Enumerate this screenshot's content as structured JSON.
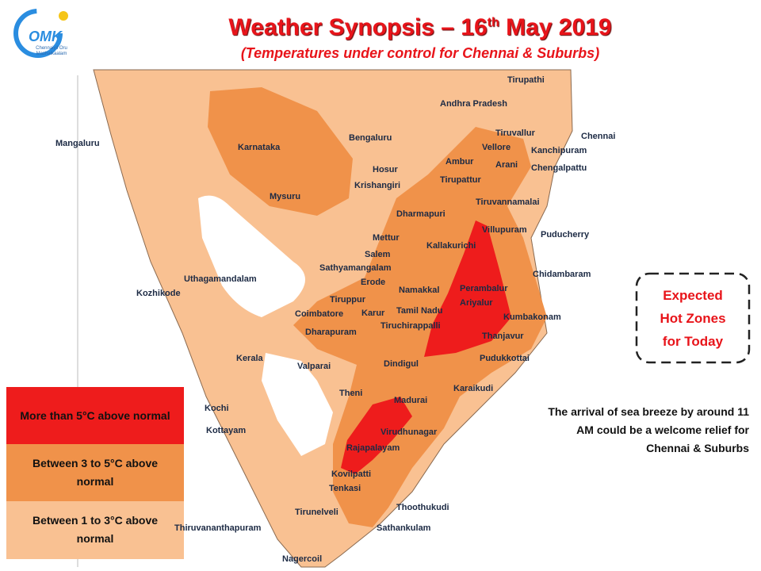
{
  "header": {
    "title_parts": [
      "Weather Synopsis – 16",
      "th",
      " May 2019"
    ],
    "subtitle": "(Temperatures under control for Chennai & Suburbs)"
  },
  "logo": {
    "name": "OMK",
    "tagline": "Chennaiyil Oru Mazhaikaalam"
  },
  "places": [
    "Tirupathi",
    "Andhra Pradesh",
    "Chennai",
    "Tiruvallur",
    "Kanchipuram",
    "Vellore",
    "Chengalpattu",
    "Arani",
    "Mangaluru",
    "Karnataka",
    "Bengaluru",
    "Hosur",
    "Ambur",
    "Krishangiri",
    "Tirupattur",
    "Mysuru",
    "Tiruvannamalai",
    "Dharmapuri",
    "Villupuram",
    "Puducherry",
    "Mettur",
    "Kallakurichi",
    "Salem",
    "Sathyamangalam",
    "Chidambaram",
    "Uthagamandalam",
    "Erode",
    "Namakkal",
    "Perambalur",
    "Kozhikode",
    "Tiruppur",
    "Tamil Nadu",
    "Ariyalur",
    "Coimbatore",
    "Karur",
    "Kumbakonam",
    "Tiruchirappalli",
    "Dharapuram",
    "Thanjavur",
    "Kerala",
    "Dindigul",
    "Pudukkottai",
    "Valparai",
    "Theni",
    "Madurai",
    "Karaikudi",
    "Kochi",
    "Kottayam",
    "Virudhunagar",
    "Rajapalayam",
    "Kovilpatti",
    "Tenkasi",
    "Thoothukudi",
    "Tirunelveli",
    "Sathankulam",
    "Thiruvananthapuram",
    "Nagercoil"
  ],
  "legend": [
    "More than 5°C above normal",
    "Between 3 to 5°C above normal",
    "Between 1 to 3°C above normal"
  ],
  "callout": "Expected Hot Zones for Today",
  "note": "The arrival of sea breeze by around 11 AM could be a welcome relief for Chennai & Suburbs"
}
